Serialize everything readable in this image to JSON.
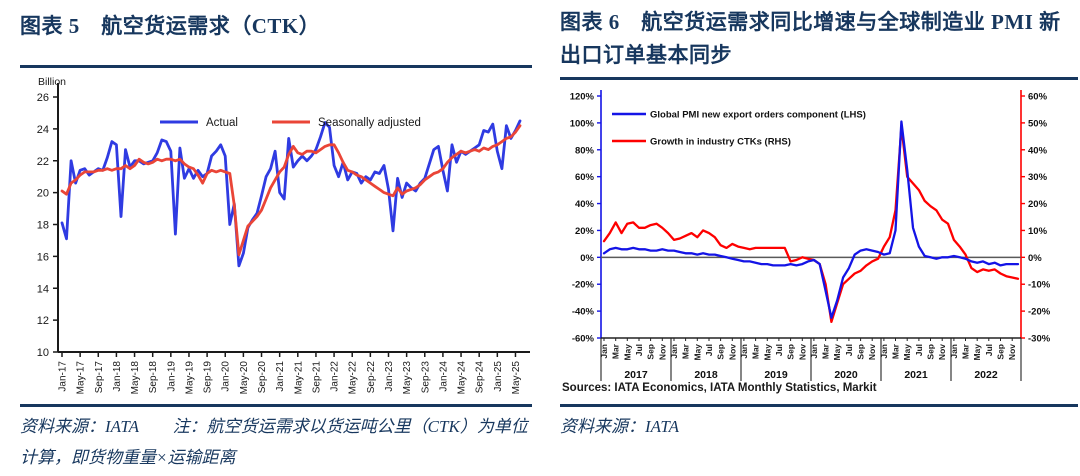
{
  "colors": {
    "heading_navy": "#17375E",
    "left_actual_blue": "#2F3BE2",
    "left_seasonal_red": "#EA4537",
    "right_pmi_blue": "#1414E6",
    "right_ctk_red": "#FE0000",
    "zero_line_gray": "#595959",
    "axis_black": "#1a1a1a"
  },
  "figure5": {
    "title": "图表 5　航空货运需求（CTK）",
    "footer": "资料来源：IATA　　注：航空货运需求以货运吨公里（CTK）为单位计算，即货物重量×运输距离"
  },
  "figure6": {
    "title": "图表 6　航空货运需求同比增速与全球制造业 PMI 新出口订单基本同步",
    "sources": "Sources: IATA Economics, IATA Monthly Statistics, Markit",
    "footer": "资料来源：IATA"
  },
  "chart_data": [
    {
      "type": "line",
      "title": "航空货运需求（CTK）",
      "unit_label": "Billion",
      "ylabel": "Billion",
      "ylim": [
        10,
        26
      ],
      "ytick_step": 2,
      "ytick_labels": [
        10,
        12,
        14,
        16,
        18,
        20,
        22,
        24,
        26
      ],
      "x_start": "Jan-17",
      "x_end": "Jun-25",
      "x_frequency": "monthly",
      "xtick_every": 4,
      "xtick_labels": [
        "Jan-17",
        "May-17",
        "Sep-17",
        "Jan-18",
        "May-18",
        "Sep-18",
        "Jan-19",
        "May-19",
        "Sep-19",
        "Jan-20",
        "May-20",
        "Sep-20",
        "Jan-21",
        "May-21",
        "Sep-21",
        "Jan-22",
        "May-22",
        "Sep-22",
        "Jan-23",
        "May-23",
        "Sep-23",
        "Jan-24",
        "May-24",
        "Sep-24",
        "Jan-25",
        "May-25"
      ],
      "legend_position": "top-center",
      "grid": false,
      "series": [
        {
          "name": "Actual",
          "color": "#2F3BE2",
          "values": [
            18.1,
            17.1,
            22.0,
            20.6,
            21.4,
            21.5,
            21.1,
            21.3,
            21.5,
            21.4,
            22.2,
            23.2,
            23.0,
            18.5,
            22.7,
            21.6,
            22.0,
            22.0,
            21.8,
            21.9,
            22.0,
            22.5,
            23.3,
            23.2,
            22.6,
            17.4,
            22.8,
            20.9,
            21.5,
            20.9,
            21.4,
            21.0,
            21.2,
            22.3,
            22.6,
            23.0,
            22.3,
            18.0,
            19.3,
            15.4,
            16.2,
            17.8,
            18.3,
            18.7,
            19.8,
            21.0,
            21.5,
            22.6,
            20.0,
            19.6,
            23.4,
            21.6,
            22.0,
            22.3,
            22.0,
            22.3,
            22.7,
            23.5,
            24.4,
            24.1,
            21.7,
            21.0,
            21.9,
            20.8,
            21.3,
            21.2,
            20.6,
            21.0,
            20.8,
            21.3,
            21.2,
            21.7,
            20.2,
            17.6,
            20.9,
            19.7,
            20.6,
            20.3,
            20.1,
            20.6,
            20.9,
            21.8,
            22.7,
            22.9,
            21.4,
            20.1,
            23.0,
            21.9,
            22.6,
            22.4,
            22.6,
            22.8,
            23.0,
            23.9,
            23.8,
            24.3,
            22.6,
            21.5,
            24.2,
            23.4,
            23.9,
            24.5
          ]
        },
        {
          "name": "Seasonally adjusted",
          "color": "#EA4537",
          "values": [
            20.1,
            19.9,
            20.6,
            20.8,
            21.1,
            21.3,
            21.3,
            21.3,
            21.4,
            21.4,
            21.5,
            21.4,
            21.5,
            21.5,
            21.7,
            21.5,
            21.7,
            22.1,
            21.9,
            21.8,
            21.9,
            22.1,
            22.0,
            22.1,
            22.1,
            22.0,
            22.1,
            21.8,
            21.6,
            21.5,
            21.1,
            20.6,
            21.2,
            21.4,
            21.3,
            21.4,
            21.3,
            21.2,
            19.2,
            16.1,
            17.0,
            17.9,
            18.2,
            18.5,
            18.9,
            19.6,
            20.3,
            20.8,
            21.3,
            21.6,
            22.4,
            22.9,
            22.5,
            22.4,
            22.6,
            22.6,
            22.5,
            22.7,
            22.9,
            23.0,
            23.0,
            22.5,
            21.9,
            21.4,
            21.3,
            21.1,
            21.0,
            20.8,
            20.6,
            20.4,
            20.2,
            20.0,
            19.9,
            19.8,
            20.3,
            19.9,
            20.1,
            20.2,
            20.3,
            20.5,
            20.8,
            21.0,
            21.2,
            21.3,
            21.5,
            21.9,
            22.2,
            22.4,
            22.6,
            22.5,
            22.6,
            22.7,
            22.6,
            22.8,
            22.7,
            22.9,
            23.0,
            23.2,
            23.4,
            23.5,
            23.8,
            24.2
          ]
        }
      ]
    },
    {
      "type": "line",
      "title": "航空货运需求同比增速与全球制造业 PMI 新出口订单基本同步",
      "dual_axis": true,
      "lhs_ylim": [
        -60,
        120
      ],
      "lhs_ticks": [
        "120%",
        "100%",
        "80%",
        "60%",
        "40%",
        "20%",
        "0%",
        "-20%",
        "-40%",
        "-60%"
      ],
      "rhs_ylim": [
        -30,
        60
      ],
      "rhs_ticks": [
        "60%",
        "50%",
        "40%",
        "30%",
        "20%",
        "10%",
        "0%",
        "-10%",
        "-20%",
        "-30%"
      ],
      "years": [
        "2017",
        "2018",
        "2019",
        "2020",
        "2021",
        "2022"
      ],
      "month_labels": [
        "Jan",
        "Mar",
        "May",
        "Jul",
        "Sep",
        "Nov"
      ],
      "x_frequency": "monthly",
      "legend_position": "top-left",
      "zero_line": true,
      "sources": "Sources: IATA Economics, IATA Monthly Statistics, Markit",
      "series": [
        {
          "name": "Growth in industry CTKs (RHS)",
          "axis": "RHS",
          "color": "#FE0000",
          "values": [
            6,
            9,
            13,
            9,
            12.5,
            13,
            11,
            11,
            12,
            12.5,
            11,
            9,
            6.5,
            7,
            8,
            9,
            7.5,
            10,
            9,
            7.5,
            4.5,
            3.5,
            5,
            4,
            3.5,
            3,
            3.5,
            3.5,
            3.5,
            3.5,
            3.5,
            3.5,
            -1.5,
            -1,
            0,
            -0.5,
            -1,
            -2.5,
            -10,
            -24,
            -17,
            -10,
            -8,
            -6,
            -5,
            -3,
            -1.5,
            -0.5,
            4,
            7.5,
            17.5,
            48.5,
            30,
            27.5,
            25,
            21,
            19,
            17.5,
            14,
            12.5,
            6.5,
            4,
            1,
            -4,
            -5.5,
            -4.5,
            -5,
            -4.5,
            -6,
            -7,
            -7.5,
            -8
          ]
        },
        {
          "name": "Global PMI new export orders component (LHS)",
          "axis": "LHS",
          "color": "#1414E6",
          "values": [
            3,
            6,
            7,
            6,
            6,
            7,
            6,
            6,
            5,
            5,
            6,
            5,
            5,
            4,
            3,
            3,
            2,
            3,
            2,
            2,
            1,
            0,
            -1,
            -2,
            -3,
            -3,
            -4,
            -5,
            -5,
            -6,
            -6,
            -6,
            -5,
            -6,
            -5,
            -3,
            -2,
            -5,
            -25,
            -45,
            -32,
            -15,
            -8,
            2,
            5,
            6,
            5,
            4,
            2,
            3,
            20,
            101,
            65,
            22,
            8,
            1,
            0,
            -1,
            0,
            0,
            1,
            0,
            -1,
            -3,
            -4,
            -3,
            -5,
            -4,
            -6,
            -5,
            -5,
            -5
          ]
        }
      ]
    }
  ]
}
